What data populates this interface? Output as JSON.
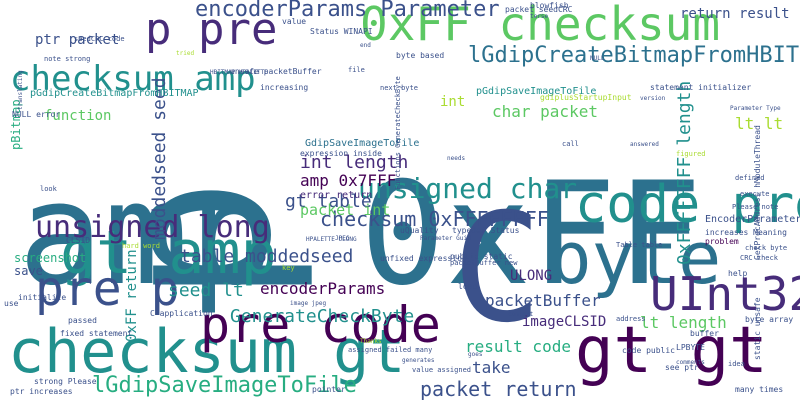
{
  "word_cloud": {
    "background": "#ffffff",
    "palette": [
      "#440154",
      "#472c7a",
      "#3b518b",
      "#2c718e",
      "#21908d",
      "#27ad81",
      "#5cc863",
      "#aadc32",
      "#fde725"
    ],
    "words": [
      {
        "text": "amp 0xFF",
        "color": "#2c718e"
      },
      {
        "text": "0xFF checksum",
        "color": "#5cc863"
      },
      {
        "text": "p pre",
        "color": "#472c7a"
      },
      {
        "text": "p",
        "color": "#2c718e"
      },
      {
        "text": "C",
        "color": "#3b518b"
      },
      {
        "text": "checksum gt",
        "color": "#21908d"
      },
      {
        "text": "gt gt",
        "color": "#440154"
      },
      {
        "text": "byte",
        "color": "#2c718e"
      },
      {
        "text": "gt amp",
        "color": "#21908d"
      },
      {
        "text": "pre code",
        "color": "#440154"
      },
      {
        "text": "code pre",
        "color": "#21908d"
      },
      {
        "text": "UInt32",
        "color": "#472c7a"
      },
      {
        "text": "unsigned long",
        "color": "#472c7a"
      },
      {
        "text": "pre p",
        "color": "#3b518b"
      },
      {
        "text": "checksum amp",
        "color": "#21908d"
      },
      {
        "text": "encoderParams Parameter",
        "color": "#3b518b"
      },
      {
        "text": "lGdipCreateBitmapFromHBITMAP",
        "color": "#2c718e"
      },
      {
        "text": "unsigned char",
        "color": "#21908d"
      },
      {
        "text": "0xFFFFFFFF length",
        "color": "#21908d"
      },
      {
        "text": "checksum 0xFFFFFFFF",
        "color": "#3b518b"
      },
      {
        "text": "lGdipSaveImageToFile",
        "color": "#27ad81"
      },
      {
        "text": "packet return",
        "color": "#3b518b"
      },
      {
        "text": "GenerateCheckByte",
        "color": "#21908d"
      },
      {
        "text": "moddedseed seed",
        "color": "#3b518b"
      },
      {
        "text": "int length",
        "color": "#472c7a"
      },
      {
        "text": "amp 0x7FFF",
        "color": "#440154"
      },
      {
        "text": "gt table",
        "color": "#3b518b"
      },
      {
        "text": "table moddedseed",
        "color": "#3b518b"
      },
      {
        "text": "packet int",
        "color": "#5cc863"
      },
      {
        "text": "char packet",
        "color": "#5cc863"
      },
      {
        "text": "result code",
        "color": "#27ad81"
      },
      {
        "text": "packetBuffer",
        "color": "#3b518b"
      },
      {
        "text": "encoderParams",
        "color": "#440154"
      },
      {
        "text": "seed lt",
        "color": "#21908d"
      },
      {
        "text": "lt length",
        "color": "#5cc863"
      },
      {
        "text": "lt lt",
        "color": "#aadc32"
      },
      {
        "text": "return result",
        "color": "#3b518b"
      },
      {
        "text": "ptr packet",
        "color": "#3b518b"
      },
      {
        "text": "function",
        "color": "#5cc863"
      },
      {
        "text": "0xFF return",
        "color": "#21908d"
      },
      {
        "text": "take",
        "color": "#3b518b"
      },
      {
        "text": "ULONG",
        "color": "#472c7a"
      },
      {
        "text": "imageCLSID",
        "color": "#472c7a"
      },
      {
        "text": "int",
        "color": "#aadc32"
      },
      {
        "text": "screenshot",
        "color": "#27ad81"
      },
      {
        "text": "save",
        "color": "#3b518b"
      },
      {
        "text": "pBitmap",
        "color": "#27ad81"
      },
      {
        "text": "pGdipCreateBitmapFromHBITMAP",
        "color": "#21908d"
      },
      {
        "text": "pGdipSaveImageToFile",
        "color": "#21908d"
      },
      {
        "text": "gdiplusStartupInput",
        "color": "#aadc32"
      },
      {
        "text": "error return",
        "color": "#472c7a"
      },
      {
        "text": "expression inside",
        "color": "#3b518b"
      },
      {
        "text": "GdipSaveImageToFile",
        "color": "#2c718e"
      },
      {
        "text": "typedef Status",
        "color": "#3b518b"
      },
      {
        "text": "uQuality",
        "color": "#3b518b"
      },
      {
        "text": "unfixed expression",
        "color": "#3b518b"
      },
      {
        "text": "public static",
        "color": "#3b518b"
      },
      {
        "text": "packetBuffer new",
        "color": "#3b518b"
      },
      {
        "text": "Status WINAPI",
        "color": "#3b518b"
      },
      {
        "text": "byte based",
        "color": "#3b518b"
      },
      {
        "text": "unsafe packetBuffer",
        "color": "#3b518b"
      },
      {
        "text": "increasing",
        "color": "#3b518b"
      },
      {
        "text": "value",
        "color": "#3b518b"
      },
      {
        "text": "blowfish",
        "color": "#3b518b"
      },
      {
        "text": "packet seedCRC",
        "color": "#3b518b"
      },
      {
        "text": "statement initializer",
        "color": "#3b518b"
      },
      {
        "text": "EncoderParameters",
        "color": "#3b518b"
      },
      {
        "text": "increases Meaning",
        "color": "#3b518b"
      },
      {
        "text": "problem",
        "color": "#440154"
      },
      {
        "text": "CRC check",
        "color": "#3b518b"
      },
      {
        "text": "help",
        "color": "#3b518b"
      },
      {
        "text": "byte array",
        "color": "#3b518b"
      },
      {
        "text": "buffer",
        "color": "#3b518b"
      },
      {
        "text": "LPBYTE",
        "color": "#3b518b"
      },
      {
        "text": "code public",
        "color": "#3b518b"
      },
      {
        "text": "many times",
        "color": "#3b518b"
      },
      {
        "text": "see ptr",
        "color": "#3b518b"
      },
      {
        "text": "address",
        "color": "#3b518b"
      },
      {
        "text": "pointer",
        "color": "#3b518b"
      },
      {
        "text": "value assigned",
        "color": "#3b518b"
      },
      {
        "text": "assigned failed many",
        "color": "#3b518b"
      },
      {
        "text": "goes",
        "color": "#3b518b"
      },
      {
        "text": "strong Please",
        "color": "#3b518b"
      },
      {
        "text": "ptr increases",
        "color": "#3b518b"
      },
      {
        "text": "fixed statement",
        "color": "#3b518b"
      },
      {
        "text": "passed",
        "color": "#3b518b"
      },
      {
        "text": "initialize",
        "color": "#3b518b"
      },
      {
        "text": "use",
        "color": "#3b518b"
      },
      {
        "text": "CLSID",
        "color": "#3b518b"
      },
      {
        "text": "C application",
        "color": "#3b518b"
      },
      {
        "text": "load",
        "color": "#3b518b"
      },
      {
        "text": "content",
        "color": "#3b518b"
      },
      {
        "text": "NULL error",
        "color": "#3b518b"
      },
      {
        "text": "note strong",
        "color": "#3b518b"
      },
      {
        "text": "seedCRC code",
        "color": "#3b518b"
      },
      {
        "text": "hard word",
        "color": "#aadc32"
      },
      {
        "text": "execute",
        "color": "#3b518b"
      },
      {
        "text": "defined",
        "color": "#3b518b"
      },
      {
        "text": "Please note",
        "color": "#3b518b"
      },
      {
        "text": "GetProcAddress hModuleThread",
        "color": "#3b518b"
      },
      {
        "text": "call",
        "color": "#3b518b"
      },
      {
        "text": "answered",
        "color": "#3b518b"
      },
      {
        "text": "figured",
        "color": "#aadc32"
      },
      {
        "text": "needs",
        "color": "#3b518b"
      },
      {
        "text": "check byte",
        "color": "#3b518b"
      },
      {
        "text": "Table table",
        "color": "#3b518b"
      },
      {
        "text": "static unsafe",
        "color": "#3b518b"
      },
      {
        "text": "comments",
        "color": "#3b518b"
      },
      {
        "text": "end",
        "color": "#3b518b"
      },
      {
        "text": "file",
        "color": "#3b518b"
      },
      {
        "text": "next byte",
        "color": "#3b518b"
      },
      {
        "text": "NULL",
        "color": "#3b518b"
      },
      {
        "text": "version",
        "color": "#3b518b"
      },
      {
        "text": "Parameter Type",
        "color": "#3b518b"
      },
      {
        "text": "tried",
        "color": "#aadc32"
      },
      {
        "text": "translating",
        "color": "#3b518b"
      },
      {
        "text": "look",
        "color": "#3b518b"
      },
      {
        "text": "Thanks",
        "color": "#aadc32"
      },
      {
        "text": "idea",
        "color": "#3b518b"
      },
      {
        "text": "generates",
        "color": "#3b518b"
      },
      {
        "text": "Functions GenerateCheckByte",
        "color": "#3b518b"
      },
      {
        "text": "Parameter Guid",
        "color": "#3b518b"
      },
      {
        "text": "HPALETTE ULONG",
        "color": "#3b518b"
      },
      {
        "text": "terse",
        "color": "#3b518b"
      },
      {
        "text": "HBITMAP HPALETTE",
        "color": "#3b518b"
      },
      {
        "text": "JPEG",
        "color": "#3b518b"
      },
      {
        "text": "image jpeg",
        "color": "#3b518b"
      },
      {
        "text": "key",
        "color": "#aadc32"
      }
    ]
  }
}
